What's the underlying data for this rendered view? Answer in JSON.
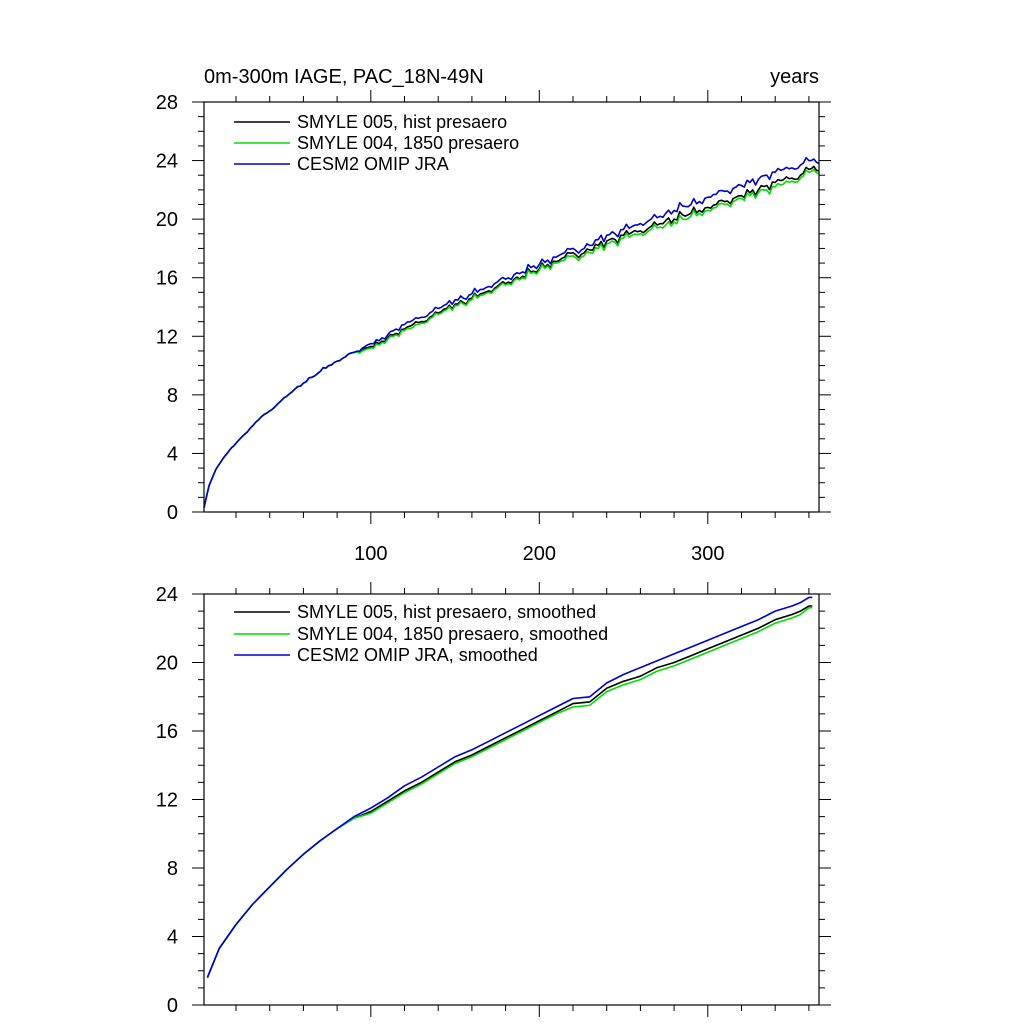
{
  "chart_data": [
    {
      "type": "line",
      "title": "0m-300m IAGE, PAC_18N-49N",
      "units": "years",
      "xlim": [
        1,
        366
      ],
      "ylim": [
        0,
        28
      ],
      "x_ticks": [
        100,
        200,
        300
      ],
      "x_tick_labels": [
        "100",
        "200",
        "300"
      ],
      "y_ticks": [
        0,
        4,
        8,
        12,
        16,
        20,
        24,
        28
      ],
      "y_tick_labels": [
        "0",
        "4",
        "8",
        "12",
        "16",
        "20",
        "24",
        "28"
      ],
      "legend": [
        "SMYLE 005, hist presaero",
        "SMYLE 004, 1850 presaero",
        "CESM2 OMIP JRA"
      ],
      "series": [
        {
          "name": "SMYLE 005, hist presaero",
          "color": "#000000",
          "x": [
            1,
            4,
            8,
            12,
            16,
            20,
            25,
            30,
            35,
            40,
            45,
            50,
            55,
            60,
            65,
            70,
            75,
            80,
            85,
            90,
            95,
            100,
            105,
            110,
            115,
            120,
            125,
            130,
            135,
            140,
            145,
            150,
            155,
            160,
            165,
            170,
            175,
            180,
            185,
            190,
            195,
            200,
            205,
            210,
            215,
            220,
            225,
            230,
            235,
            240,
            245,
            250,
            255,
            260,
            265,
            270,
            275,
            280,
            285,
            290,
            295,
            300,
            305,
            310,
            315,
            320,
            325,
            330,
            335,
            340,
            345,
            350,
            355,
            360,
            363,
            366
          ],
          "y": [
            0.3,
            1.8,
            2.9,
            3.6,
            4.2,
            4.7,
            5.3,
            5.9,
            6.5,
            6.9,
            7.4,
            7.9,
            8.4,
            8.8,
            9.2,
            9.6,
            10.0,
            10.3,
            10.6,
            10.9,
            11.1,
            11.3,
            11.5,
            11.9,
            12.2,
            12.5,
            12.8,
            13.0,
            13.3,
            13.6,
            13.9,
            14.2,
            14.3,
            14.6,
            14.9,
            15.1,
            15.4,
            15.6,
            15.9,
            16.1,
            16.4,
            16.6,
            16.9,
            17.1,
            17.4,
            17.7,
            17.6,
            17.9,
            18.2,
            18.5,
            18.6,
            18.9,
            19.1,
            19.2,
            19.4,
            19.6,
            19.9,
            20.0,
            20.3,
            20.4,
            20.6,
            20.8,
            21.0,
            21.2,
            21.4,
            21.6,
            21.8,
            22.0,
            22.3,
            22.5,
            22.7,
            22.8,
            23.0,
            23.4,
            23.6,
            23.3
          ]
        },
        {
          "name": "SMYLE 004, 1850 presaero",
          "color": "#00dd00",
          "x": [
            1,
            4,
            8,
            12,
            16,
            20,
            25,
            30,
            35,
            40,
            45,
            50,
            55,
            60,
            65,
            70,
            75,
            80,
            85,
            90,
            95,
            100,
            105,
            110,
            115,
            120,
            125,
            130,
            135,
            140,
            145,
            150,
            155,
            160,
            165,
            170,
            175,
            180,
            185,
            190,
            195,
            200,
            205,
            210,
            215,
            220,
            225,
            230,
            235,
            240,
            245,
            250,
            255,
            260,
            265,
            270,
            275,
            280,
            285,
            290,
            295,
            300,
            305,
            310,
            315,
            320,
            325,
            330,
            335,
            340,
            345,
            350,
            355,
            360,
            363,
            366
          ],
          "y": [
            0.3,
            1.8,
            2.9,
            3.6,
            4.2,
            4.7,
            5.3,
            5.9,
            6.5,
            6.9,
            7.4,
            7.9,
            8.4,
            8.8,
            9.2,
            9.6,
            10.0,
            10.3,
            10.6,
            10.9,
            11.0,
            11.2,
            11.4,
            11.8,
            12.1,
            12.4,
            12.6,
            12.9,
            13.2,
            13.5,
            13.8,
            14.1,
            14.2,
            14.5,
            14.8,
            15.0,
            15.3,
            15.5,
            15.8,
            16.0,
            16.3,
            16.5,
            16.8,
            17.0,
            17.2,
            17.5,
            17.4,
            17.7,
            18.0,
            18.3,
            18.4,
            18.7,
            18.9,
            19.0,
            19.2,
            19.4,
            19.6,
            19.8,
            20.0,
            20.2,
            20.4,
            20.6,
            20.8,
            21.0,
            21.2,
            21.4,
            21.6,
            21.8,
            22.0,
            22.2,
            22.4,
            22.6,
            22.8,
            23.2,
            23.4,
            23.1
          ]
        },
        {
          "name": "CESM2 OMIP JRA",
          "color": "#0000cc",
          "x": [
            1,
            4,
            8,
            12,
            16,
            20,
            25,
            30,
            35,
            40,
            45,
            50,
            55,
            60,
            65,
            70,
            75,
            80,
            85,
            90,
            95,
            100,
            105,
            110,
            115,
            120,
            125,
            130,
            135,
            140,
            145,
            150,
            155,
            160,
            165,
            170,
            175,
            180,
            185,
            190,
            195,
            200,
            205,
            210,
            215,
            220,
            225,
            230,
            235,
            240,
            245,
            250,
            255,
            260,
            265,
            270,
            275,
            280,
            285,
            290,
            295,
            300,
            305,
            310,
            315,
            320,
            325,
            330,
            335,
            340,
            345,
            350,
            355,
            360,
            363,
            366
          ],
          "y": [
            0.3,
            1.8,
            2.9,
            3.6,
            4.2,
            4.7,
            5.3,
            5.9,
            6.5,
            6.9,
            7.4,
            7.9,
            8.4,
            8.8,
            9.2,
            9.6,
            10.0,
            10.3,
            10.6,
            10.9,
            11.2,
            11.5,
            11.7,
            12.1,
            12.5,
            12.8,
            13.1,
            13.3,
            13.6,
            13.9,
            14.2,
            14.5,
            14.6,
            14.9,
            15.2,
            15.4,
            15.7,
            15.9,
            16.2,
            16.4,
            16.7,
            16.9,
            17.2,
            17.4,
            17.7,
            18.0,
            17.9,
            18.2,
            18.6,
            18.9,
            19.0,
            19.3,
            19.5,
            19.7,
            19.9,
            20.1,
            20.4,
            20.6,
            20.9,
            21.0,
            21.2,
            21.5,
            21.7,
            21.9,
            22.1,
            22.3,
            22.5,
            22.7,
            23.0,
            23.2,
            23.4,
            23.5,
            23.7,
            24.0,
            24.1,
            23.8
          ]
        }
      ]
    },
    {
      "type": "line",
      "title": "",
      "xlim": [
        1,
        366
      ],
      "ylim": [
        0,
        24
      ],
      "x_ticks": [
        100,
        200,
        300
      ],
      "y_ticks": [
        0,
        4,
        8,
        12,
        16,
        20,
        24
      ],
      "y_tick_labels": [
        "0",
        "4",
        "8",
        "12",
        "16",
        "20",
        "24"
      ],
      "legend": [
        "SMYLE 005, hist presaero, smoothed",
        "SMYLE 004, 1850 presaero, smoothed",
        "CESM2 OMIP JRA, smoothed"
      ],
      "series": [
        {
          "name": "SMYLE 005, hist presaero, smoothed",
          "color": "#000000",
          "x": [
            3,
            10,
            20,
            30,
            40,
            50,
            60,
            70,
            80,
            90,
            100,
            110,
            120,
            130,
            140,
            150,
            160,
            170,
            180,
            190,
            200,
            210,
            220,
            230,
            240,
            250,
            260,
            270,
            280,
            290,
            300,
            310,
            320,
            330,
            340,
            350,
            355,
            360,
            362
          ],
          "y": [
            1.6,
            3.3,
            4.7,
            5.9,
            6.9,
            7.9,
            8.8,
            9.6,
            10.3,
            10.9,
            11.3,
            11.9,
            12.5,
            13.0,
            13.6,
            14.2,
            14.6,
            15.1,
            15.6,
            16.1,
            16.6,
            17.1,
            17.6,
            17.7,
            18.5,
            18.9,
            19.2,
            19.7,
            20.0,
            20.4,
            20.8,
            21.2,
            21.6,
            22.0,
            22.5,
            22.8,
            23.0,
            23.3,
            23.3
          ]
        },
        {
          "name": "SMYLE 004, 1850 presaero, smoothed",
          "color": "#00dd00",
          "x": [
            3,
            10,
            20,
            30,
            40,
            50,
            60,
            70,
            80,
            90,
            100,
            110,
            120,
            130,
            140,
            150,
            160,
            170,
            180,
            190,
            200,
            210,
            220,
            230,
            240,
            250,
            260,
            270,
            280,
            290,
            300,
            310,
            320,
            330,
            340,
            350,
            355,
            360,
            362
          ],
          "y": [
            1.6,
            3.3,
            4.7,
            5.9,
            6.9,
            7.9,
            8.8,
            9.6,
            10.3,
            10.9,
            11.2,
            11.8,
            12.4,
            12.9,
            13.5,
            14.1,
            14.5,
            15.0,
            15.5,
            16.0,
            16.5,
            17.0,
            17.4,
            17.5,
            18.3,
            18.7,
            19.0,
            19.5,
            19.8,
            20.2,
            20.6,
            21.0,
            21.4,
            21.8,
            22.3,
            22.6,
            22.8,
            23.2,
            23.2
          ]
        },
        {
          "name": "CESM2 OMIP JRA, smoothed",
          "color": "#0000cc",
          "x": [
            3,
            10,
            20,
            30,
            40,
            50,
            60,
            70,
            80,
            90,
            100,
            110,
            120,
            130,
            140,
            150,
            160,
            170,
            180,
            190,
            200,
            210,
            220,
            230,
            240,
            250,
            260,
            270,
            280,
            290,
            300,
            310,
            320,
            330,
            340,
            350,
            355,
            360,
            362
          ],
          "y": [
            1.6,
            3.3,
            4.7,
            5.9,
            6.9,
            7.9,
            8.8,
            9.6,
            10.3,
            11.0,
            11.5,
            12.1,
            12.8,
            13.3,
            13.9,
            14.5,
            14.9,
            15.4,
            15.9,
            16.4,
            16.9,
            17.4,
            17.9,
            18.0,
            18.8,
            19.3,
            19.7,
            20.1,
            20.5,
            20.9,
            21.3,
            21.7,
            22.1,
            22.5,
            23.0,
            23.3,
            23.5,
            23.8,
            23.8
          ]
        }
      ]
    }
  ]
}
